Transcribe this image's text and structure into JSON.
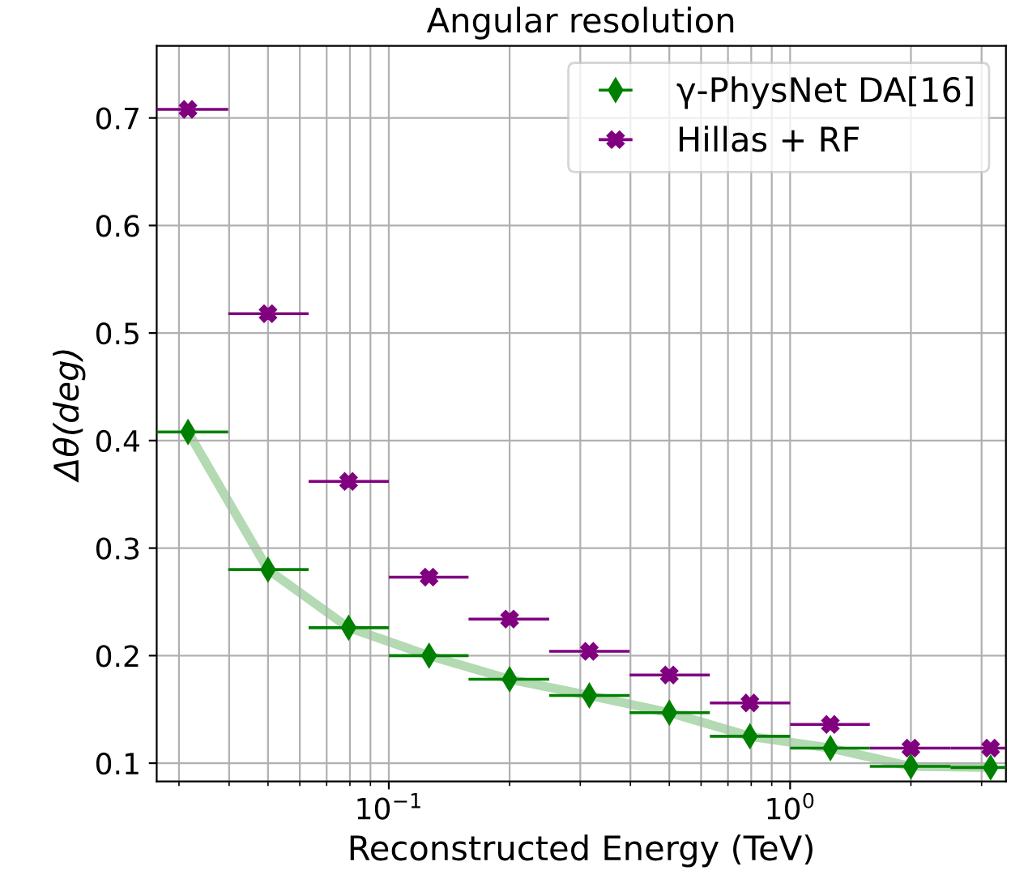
{
  "chart_data": {
    "type": "scatter",
    "title": "Angular resolution",
    "xlabel": "Reconstructed Energy (TeV)",
    "ylabel": "Δθ(deg)",
    "x": [
      0.0316,
      0.05,
      0.0794,
      0.126,
      0.2,
      0.316,
      0.5,
      0.794,
      1.26,
      2.0,
      3.16
    ],
    "series": [
      {
        "type": "line",
        "color": "#b3dab3",
        "values": [
          0.408,
          0.28,
          0.226,
          0.2,
          0.178,
          0.163,
          0.147,
          0.125,
          0.114,
          0.097,
          0.096
        ]
      },
      {
        "name": "γ-PhysNet DA[16]",
        "color": "#008000",
        "marker": "diamond",
        "values": [
          0.408,
          0.28,
          0.226,
          0.2,
          0.178,
          0.163,
          0.147,
          0.125,
          0.114,
          0.097,
          0.096
        ],
        "xerrors": [
          [
            0.0264,
            0.0398
          ],
          [
            0.0398,
            0.0631
          ],
          [
            0.0631,
            0.1
          ],
          [
            0.1,
            0.158
          ],
          [
            0.158,
            0.251
          ],
          [
            0.251,
            0.398
          ],
          [
            0.398,
            0.631
          ],
          [
            0.631,
            1.0
          ],
          [
            1.0,
            1.58
          ],
          [
            1.58,
            2.51
          ],
          [
            2.51,
            3.45
          ]
        ]
      },
      {
        "name": "Hillas + RF",
        "color": "#800080",
        "marker": "cross",
        "values": [
          0.708,
          0.518,
          0.362,
          0.273,
          0.234,
          0.204,
          0.182,
          0.156,
          0.136,
          0.114,
          0.114
        ],
        "xerrors": [
          [
            0.0264,
            0.0398
          ],
          [
            0.0398,
            0.0631
          ],
          [
            0.0631,
            0.1
          ],
          [
            0.1,
            0.158
          ],
          [
            0.158,
            0.251
          ],
          [
            0.251,
            0.398
          ],
          [
            0.398,
            0.631
          ],
          [
            0.631,
            1.0
          ],
          [
            1.0,
            1.58
          ],
          [
            1.58,
            2.51
          ],
          [
            2.51,
            3.45
          ]
        ]
      }
    ],
    "log": "x",
    "xlim": [
      0.0264,
      3.45
    ],
    "xticks": [
      {
        "value": 0.1,
        "label": "10$^{−1}$"
      },
      {
        "value": 1,
        "label": "10$^{0}$"
      }
    ],
    "ylim": [
      0.083,
      0.767
    ],
    "yticks": [
      0.1,
      0.2,
      0.3,
      0.4,
      0.5,
      0.6,
      0.7
    ],
    "grid": true,
    "legend": "top right"
  }
}
